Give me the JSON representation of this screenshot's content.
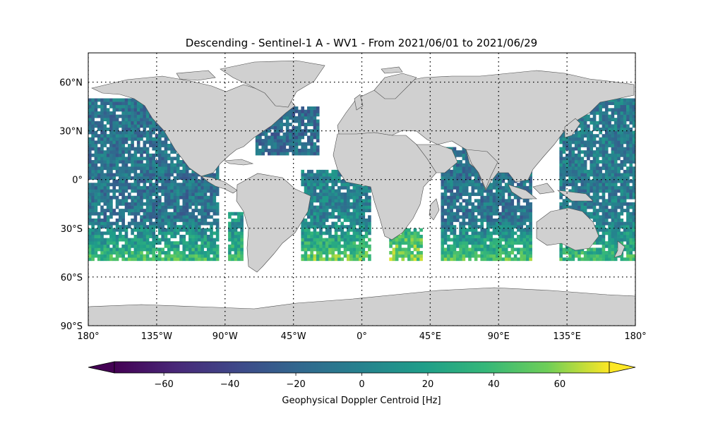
{
  "title": "Descending - Sentinel-1 A - WV1 - From 2021/06/01 to 2021/06/29",
  "map": {
    "projection": "PlateCarree",
    "lon_range": [
      -180,
      180
    ],
    "lat_range": [
      -90,
      90
    ],
    "gridlines": "dotted",
    "land_color": "#d0d0d0",
    "coastline_color": "#4a4a4a",
    "x_ticks": [
      {
        "value": -180,
        "label": "180°"
      },
      {
        "value": -135,
        "label": "135°W"
      },
      {
        "value": -90,
        "label": "90°W"
      },
      {
        "value": -45,
        "label": "45°W"
      },
      {
        "value": 0,
        "label": "0°"
      },
      {
        "value": 45,
        "label": "45°E"
      },
      {
        "value": 90,
        "label": "90°E"
      },
      {
        "value": 135,
        "label": "135°E"
      },
      {
        "value": 180,
        "label": "180°"
      }
    ],
    "y_ticks": [
      {
        "value": 60,
        "label": "60°N"
      },
      {
        "value": 30,
        "label": "30°N"
      },
      {
        "value": 0,
        "label": "0°"
      },
      {
        "value": -30,
        "label": "30°S"
      },
      {
        "value": -60,
        "label": "60°S"
      },
      {
        "value": -90,
        "label": "90°S"
      }
    ]
  },
  "colorbar": {
    "label": "Geophysical Doppler Centroid [Hz]",
    "colormap": "viridis",
    "vmin": -75,
    "vmax": 75,
    "extend": "both",
    "ticks": [
      {
        "value": -60,
        "label": "−60"
      },
      {
        "value": -40,
        "label": "−40"
      },
      {
        "value": -20,
        "label": "−20"
      },
      {
        "value": 0,
        "label": "0"
      },
      {
        "value": 20,
        "label": "20"
      },
      {
        "value": 40,
        "label": "40"
      },
      {
        "value": 60,
        "label": "60"
      }
    ]
  },
  "data_coverage": {
    "lat_range": [
      -50,
      50
    ],
    "regions": [
      {
        "lon": [
          -180,
          -95
        ],
        "lat": [
          -50,
          50
        ],
        "mean_hz": -10,
        "south_mean_hz": 40
      },
      {
        "lon": [
          -88,
          -78
        ],
        "lat": [
          -50,
          -20
        ],
        "mean_hz": 10,
        "south_mean_hz": 35
      },
      {
        "lon": [
          -70,
          -28
        ],
        "lat": [
          15,
          45
        ],
        "mean_hz": -15,
        "south_mean_hz": 0
      },
      {
        "lon": [
          -40,
          5
        ],
        "lat": [
          -50,
          5
        ],
        "mean_hz": 0,
        "south_mean_hz": 50
      },
      {
        "lon": [
          18,
          40
        ],
        "lat": [
          -50,
          -30
        ],
        "mean_hz": 30,
        "south_mean_hz": 55
      },
      {
        "lon": [
          52,
          112
        ],
        "lat": [
          -50,
          20
        ],
        "mean_hz": -10,
        "south_mean_hz": 45
      },
      {
        "lon": [
          130,
          180
        ],
        "lat": [
          -50,
          50
        ],
        "mean_hz": -5,
        "south_mean_hz": 40
      }
    ]
  }
}
